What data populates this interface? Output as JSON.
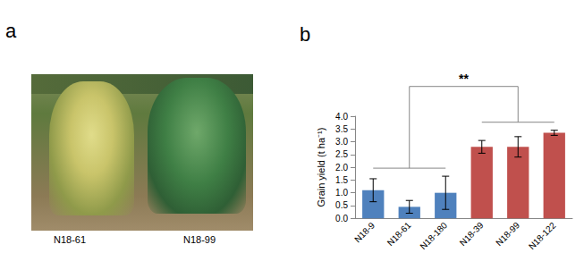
{
  "panel_a": {
    "label": "a",
    "photo_labels": [
      "N18-61",
      "N18-99"
    ]
  },
  "chart_data": {
    "type": "bar",
    "title": "b",
    "y_label": "Grain yield (t ha⁻¹)",
    "categories": [
      "N18-9",
      "N18-61",
      "N18-180",
      "N18-39",
      "N18-99",
      "N18-122"
    ],
    "values": [
      1.1,
      0.45,
      1.0,
      2.8,
      2.8,
      3.35
    ],
    "errors": [
      0.45,
      0.25,
      0.65,
      0.25,
      0.4,
      0.1
    ],
    "colors": [
      "#4f81bd",
      "#4f81bd",
      "#4f81bd",
      "#c0504d",
      "#c0504d",
      "#c0504d"
    ],
    "ylim": [
      0,
      4
    ],
    "yticks": [
      {
        "value": 0,
        "label": "0.0"
      },
      {
        "value": 0.5,
        "label": "0.5"
      },
      {
        "value": 1,
        "label": "1.0"
      },
      {
        "value": 1.5,
        "label": "1.5"
      },
      {
        "value": 2,
        "label": "2.0"
      },
      {
        "value": 2.5,
        "label": "2.5"
      },
      {
        "value": 3,
        "label": "3.0"
      },
      {
        "value": 3.5,
        "label": "3.5"
      },
      {
        "value": 4,
        "label": "4.0"
      }
    ],
    "grid": false,
    "annotations": [
      {
        "text": "**",
        "groups": [
          [
            "N18-9",
            "N18-180"
          ],
          [
            "N18-39",
            "N18-122"
          ]
        ]
      }
    ]
  }
}
